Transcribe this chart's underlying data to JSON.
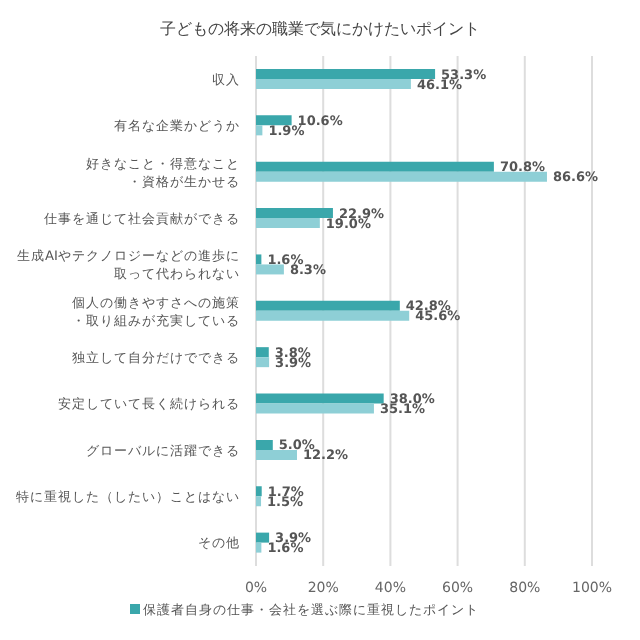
{
  "chart_data": {
    "type": "bar",
    "orientation": "horizontal",
    "title": "子どもの将来の職業で気にかけたいポイント",
    "categories": [
      "収入",
      "有名な企業かどうか",
      "好きなこと・得意なこと・資格が生かせる",
      "仕事を通じて社会貢献ができる",
      "生成AIやテクノロジーなどの進歩に取って代わられない",
      "個人の働きやすさへの施策・取り組みが充実している",
      "独立して自分だけでできる",
      "安定していて長く続けられる",
      "グローバルに活躍できる",
      "特に重視した（したい）ことはない",
      "その他"
    ],
    "series": [
      {
        "name": "保護者自身の仕事・会社を選ぶ際に重視したポイント",
        "color": "#3aa7ab",
        "values": [
          53.3,
          10.6,
          70.8,
          22.9,
          1.6,
          42.8,
          3.8,
          38.0,
          5.0,
          1.7,
          3.9
        ],
        "value_labels": [
          "53.3%",
          "10.6%",
          "70.8%",
          "22.9%",
          "1.6%",
          "42.8%",
          "3.8%",
          "38.0%",
          "5.0%",
          "1.7%",
          "3.9%"
        ]
      },
      {
        "color": "#8ecfd6",
        "values": [
          46.1,
          1.9,
          86.6,
          19.0,
          8.3,
          45.6,
          3.9,
          35.1,
          12.2,
          1.5,
          1.6
        ],
        "value_labels": [
          "46.1%",
          "1.9%",
          "86.6%",
          "19.0%",
          "8.3%",
          "45.6%",
          "3.9%",
          "35.1%",
          "12.2%",
          "1.5%",
          "1.6%"
        ]
      }
    ],
    "xlim": [
      0,
      100
    ],
    "xticks": [
      {
        "value": 0,
        "label": "0%"
      },
      {
        "value": 20,
        "label": "20%"
      },
      {
        "value": 40,
        "label": "40%"
      },
      {
        "value": 60,
        "label": "60%"
      },
      {
        "value": 80,
        "label": "80%"
      },
      {
        "value": 100,
        "label": "100%"
      }
    ],
    "grid": "x",
    "legend": "bottom"
  }
}
